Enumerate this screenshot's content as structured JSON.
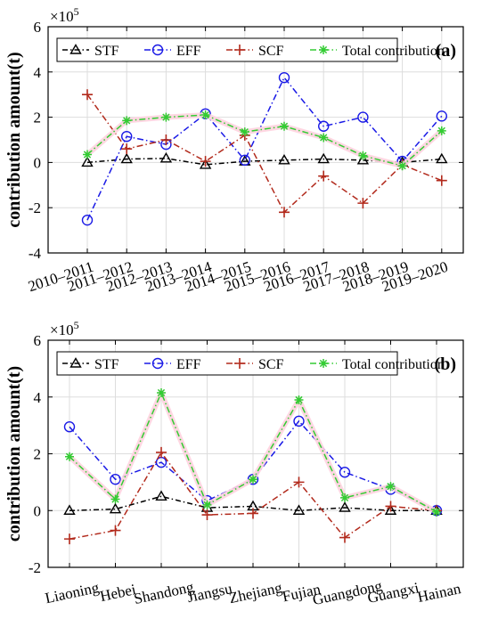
{
  "colors": {
    "STF": "#000000",
    "EFF": "#1a1ae6",
    "SCF": "#b22a1c",
    "Total contribution": "#33cc33"
  },
  "chart_data": [
    {
      "type": "line",
      "panel_label": "(a)",
      "ylabel": "contribution amount(t)",
      "y_multiplier": "×10",
      "y_exponent": "5",
      "ylim": [
        -4,
        6
      ],
      "yticks": [
        "-4",
        "-2",
        "0",
        "2",
        "4",
        "6"
      ],
      "grid": true,
      "legend": "top",
      "categories": [
        "2010–2011",
        "2011–2012",
        "2012–2013",
        "2013–2014",
        "2014–2015",
        "2015–2016",
        "2016–2017",
        "2017–2018",
        "2018–2019",
        "2019–2020"
      ],
      "series": [
        {
          "name": "STF",
          "values": [
            0.0,
            0.15,
            0.18,
            -0.1,
            0.05,
            0.1,
            0.15,
            0.1,
            0.0,
            0.15
          ]
        },
        {
          "name": "EFF",
          "values": [
            -2.55,
            1.15,
            0.8,
            2.15,
            0.1,
            3.75,
            1.6,
            2.0,
            0.05,
            2.05
          ]
        },
        {
          "name": "SCF",
          "values": [
            3.0,
            0.6,
            1.0,
            0.05,
            1.2,
            -2.2,
            -0.6,
            -1.8,
            -0.1,
            -0.8
          ]
        },
        {
          "name": "Total contribution",
          "values": [
            0.35,
            1.85,
            2.0,
            2.1,
            1.35,
            1.6,
            1.1,
            0.3,
            -0.15,
            1.4
          ]
        }
      ]
    },
    {
      "type": "line",
      "panel_label": "(b)",
      "ylabel": "contribution amount(t)",
      "y_multiplier": "×10",
      "y_exponent": "5",
      "ylim": [
        -2,
        6
      ],
      "yticks": [
        "-2",
        "0",
        "2",
        "4",
        "6"
      ],
      "grid": true,
      "legend": "top",
      "categories": [
        "Liaoning",
        "Hebei",
        "Shandong",
        "Jiangsu",
        "Zhejiang",
        "Fujian",
        "Guangdong",
        "Guangxi",
        "Hainan"
      ],
      "series": [
        {
          "name": "STF",
          "values": [
            0.0,
            0.05,
            0.5,
            0.1,
            0.15,
            0.0,
            0.1,
            0.0,
            0.0
          ]
        },
        {
          "name": "EFF",
          "values": [
            2.95,
            1.1,
            1.7,
            0.35,
            1.1,
            3.15,
            1.35,
            0.75,
            0.0
          ]
        },
        {
          "name": "SCF",
          "values": [
            -1.0,
            -0.7,
            2.05,
            -0.15,
            -0.1,
            1.0,
            -0.95,
            0.15,
            0.0
          ]
        },
        {
          "name": "Total contribution",
          "values": [
            1.9,
            0.4,
            4.15,
            0.2,
            1.1,
            3.9,
            0.45,
            0.85,
            -0.05
          ]
        }
      ]
    }
  ]
}
